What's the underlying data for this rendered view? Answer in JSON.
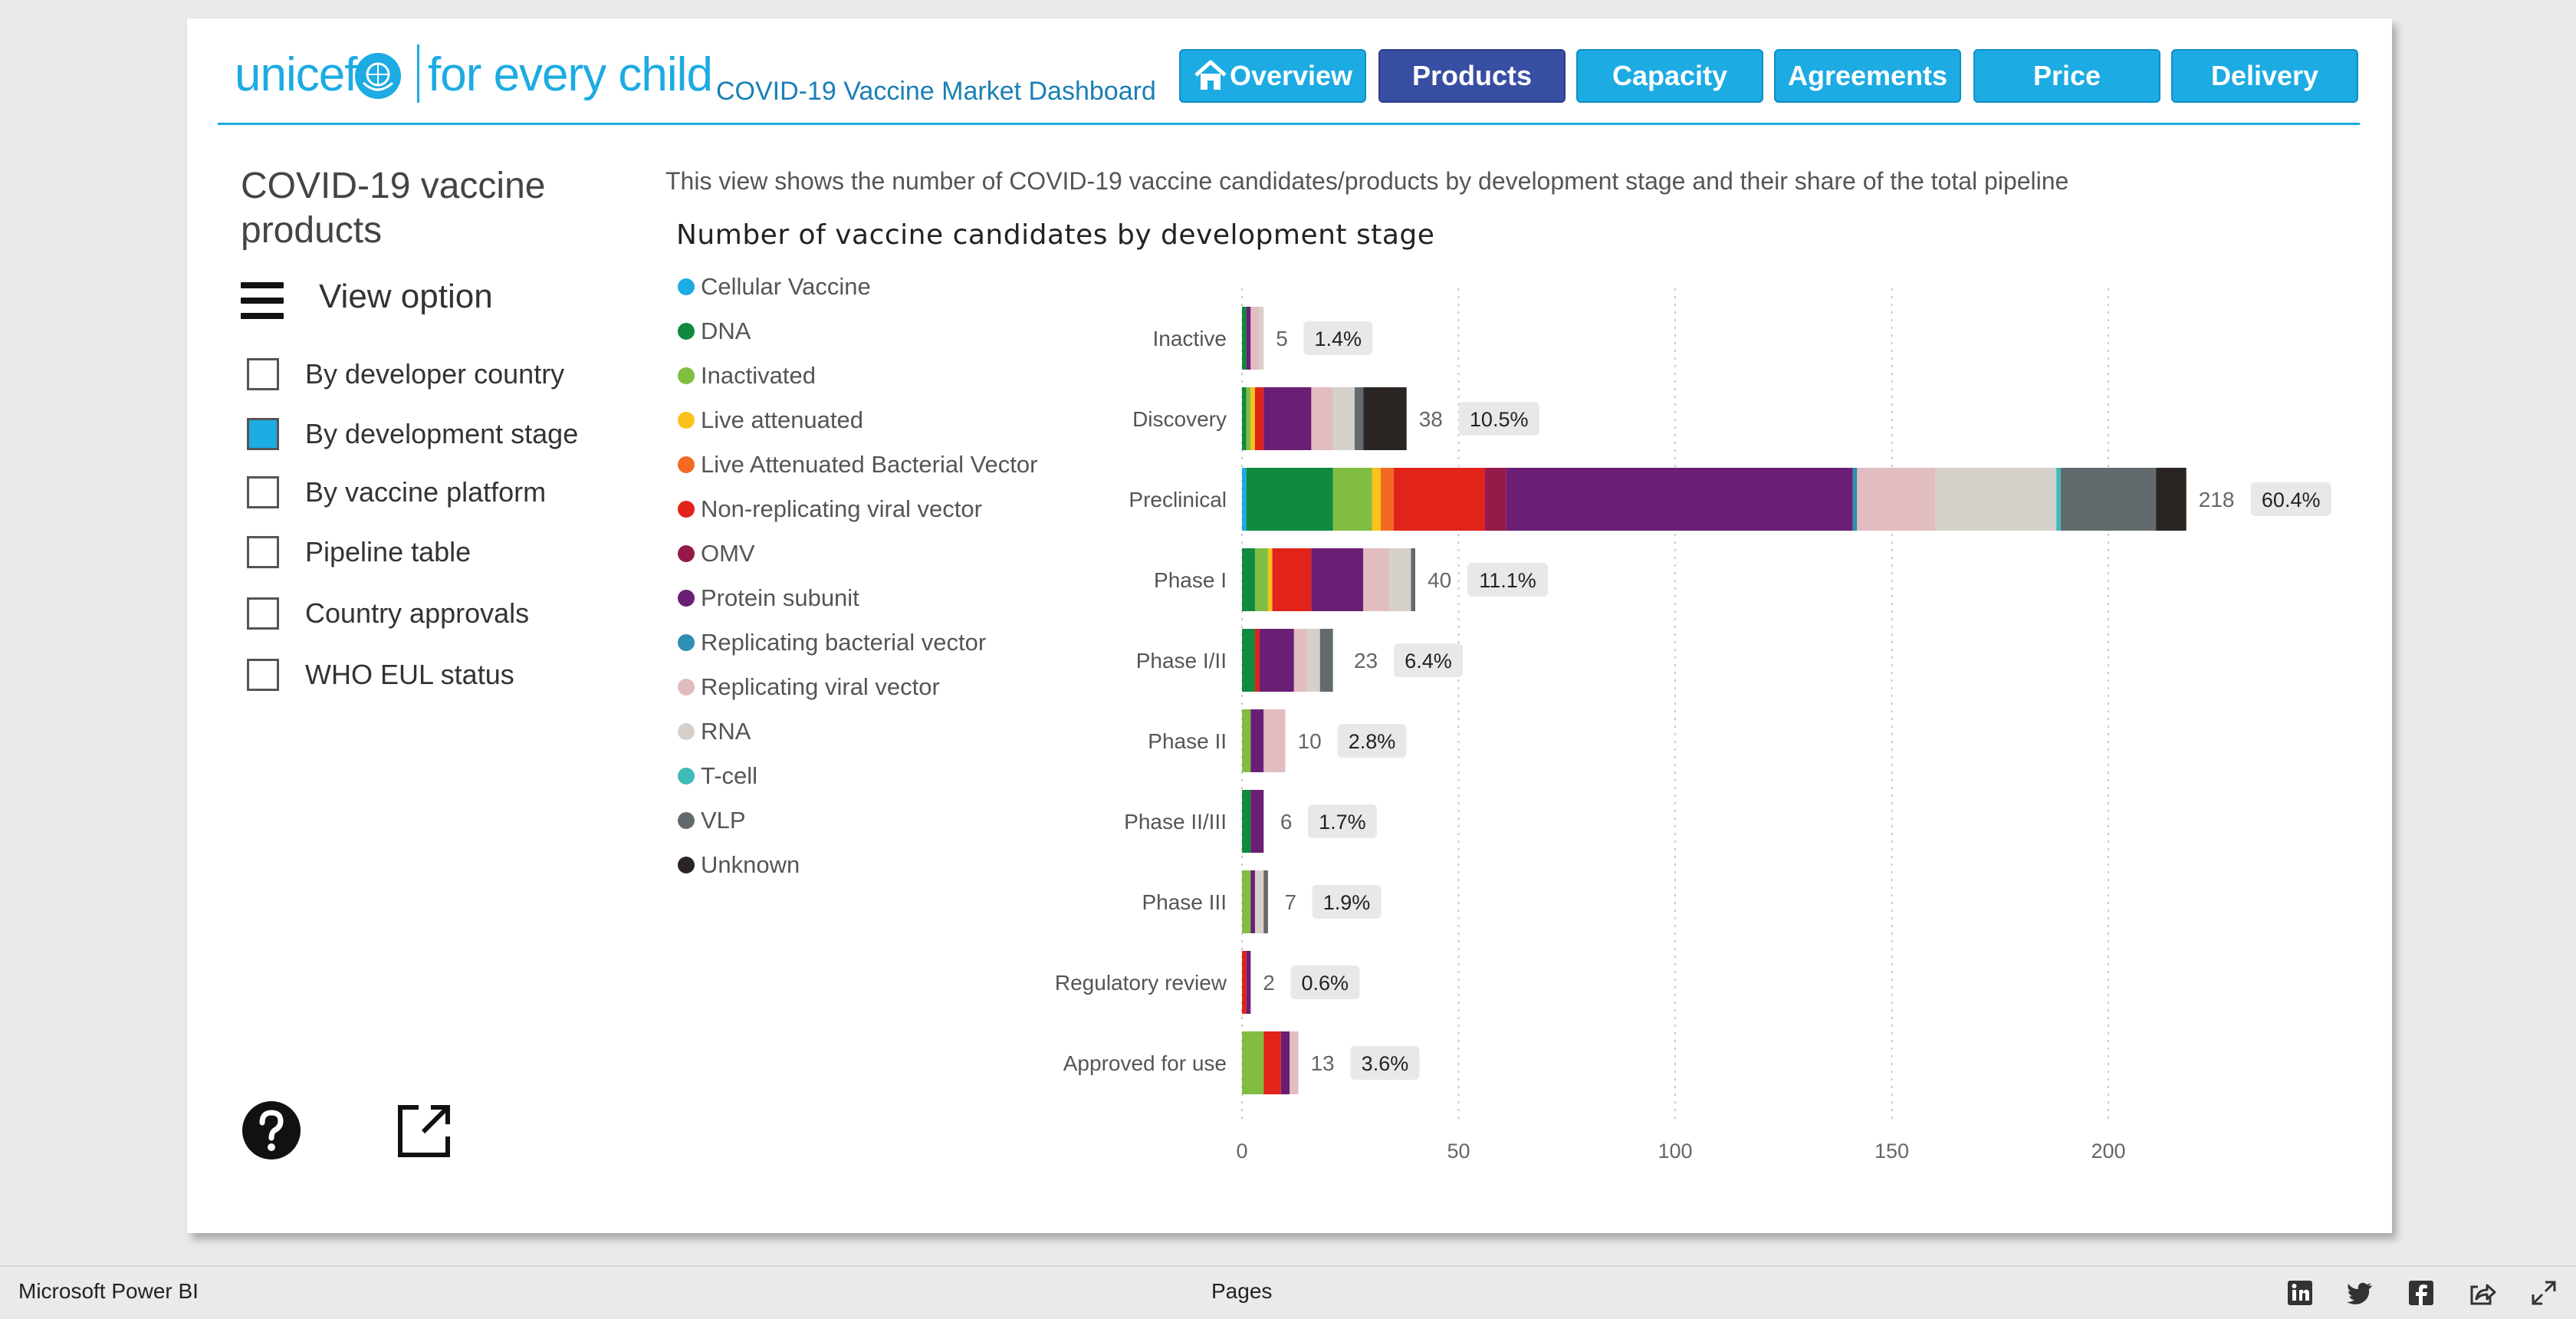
{
  "header": {
    "logo_text": "unicef",
    "logo_tagline": "for every child",
    "dashboard_title": "COVID-19 Vaccine Market Dashboard",
    "nav": [
      {
        "label": "Overview",
        "icon": "home-icon",
        "active": false
      },
      {
        "label": "Products",
        "active": true
      },
      {
        "label": "Capacity",
        "active": false
      },
      {
        "label": "Agreements",
        "active": false
      },
      {
        "label": "Price",
        "active": false
      },
      {
        "label": "Delivery",
        "active": false
      }
    ]
  },
  "left_panel": {
    "title": "COVID-19 vaccine products",
    "view_option_label": "View option",
    "options": [
      {
        "label": "By developer country",
        "checked": false
      },
      {
        "label": "By development stage",
        "checked": true
      },
      {
        "label": "By vaccine platform",
        "checked": false
      },
      {
        "label": "Pipeline table",
        "checked": false
      },
      {
        "label": "Country approvals",
        "checked": false
      },
      {
        "label": "WHO EUL status",
        "checked": false
      }
    ],
    "icons": [
      "help-icon",
      "expand-icon"
    ]
  },
  "view_description": "This view shows the number of COVID-19 vaccine candidates/products by development stage and their share of the total pipeline",
  "chart_data": {
    "type": "bar",
    "orientation": "horizontal",
    "stacked": true,
    "title": "Number of vaccine candidates by development stage",
    "categories": [
      "Inactive",
      "Discovery",
      "Preclinical",
      "Phase I",
      "Phase I/II",
      "Phase II",
      "Phase II/III",
      "Phase III",
      "Regulatory review",
      "Approved for use"
    ],
    "totals": [
      5,
      38,
      218,
      40,
      23,
      10,
      6,
      7,
      2,
      13
    ],
    "share_labels": [
      "1.4%",
      "10.5%",
      "60.4%",
      "11.1%",
      "6.4%",
      "2.8%",
      "1.7%",
      "1.9%",
      "0.6%",
      "3.6%"
    ],
    "series": [
      {
        "name": "Cellular Vaccine",
        "color": "#1cabe2",
        "values": [
          0,
          0,
          1,
          0,
          0,
          0,
          0,
          0,
          0,
          0
        ]
      },
      {
        "name": "DNA",
        "color": "#0f8a3e",
        "values": [
          1,
          1,
          20,
          3,
          3,
          0,
          2,
          0,
          0,
          0
        ]
      },
      {
        "name": "Inactivated",
        "color": "#80bd41",
        "values": [
          0,
          1,
          9,
          3,
          0,
          2,
          0,
          2,
          0,
          5
        ]
      },
      {
        "name": "Live attenuated",
        "color": "#fbc21b",
        "values": [
          0,
          1,
          2,
          1,
          0,
          0,
          0,
          0,
          0,
          0
        ]
      },
      {
        "name": "Live Attenuated Bacterial Vector",
        "color": "#f26a21",
        "values": [
          0,
          0,
          3,
          0,
          0,
          0,
          0,
          0,
          0,
          0
        ]
      },
      {
        "name": "Non-replicating viral vector",
        "color": "#e2231a",
        "values": [
          0,
          2,
          21,
          9,
          1,
          0,
          0,
          0,
          1,
          4
        ]
      },
      {
        "name": "OMV",
        "color": "#961a49",
        "values": [
          0,
          0,
          5,
          0,
          0,
          0,
          0,
          0,
          0,
          0
        ]
      },
      {
        "name": "Protein subunit",
        "color": "#6a1e74",
        "values": [
          1,
          11,
          80,
          12,
          8,
          3,
          3,
          1,
          1,
          2
        ]
      },
      {
        "name": "Replicating bacterial vector",
        "color": "#2e8fb2",
        "values": [
          0,
          0,
          1,
          0,
          0,
          0,
          0,
          0,
          0,
          0
        ]
      },
      {
        "name": "Replicating viral vector",
        "color": "#e1bcc0",
        "values": [
          2,
          5,
          18,
          6,
          3,
          5,
          0,
          0,
          0,
          2
        ]
      },
      {
        "name": "RNA",
        "color": "#d6d0ca",
        "values": [
          1,
          5,
          28,
          5,
          3,
          0,
          0,
          2,
          0,
          0
        ]
      },
      {
        "name": "T-cell",
        "color": "#3fbcb8",
        "values": [
          0,
          0,
          1,
          0,
          0,
          0,
          0,
          0,
          0,
          0
        ]
      },
      {
        "name": "VLP",
        "color": "#636a6d",
        "values": [
          0,
          2,
          22,
          1,
          3,
          0,
          0,
          1,
          0,
          0
        ]
      },
      {
        "name": "Unknown",
        "color": "#2a2523",
        "values": [
          0,
          10,
          7,
          0,
          0,
          0,
          0,
          0,
          0,
          0
        ]
      }
    ],
    "xlim": [
      0,
      240
    ],
    "xticks": [
      0,
      50,
      100,
      150,
      200
    ],
    "grid": "vertical dotted",
    "legend_position": "left"
  },
  "footer": {
    "app_name": "Microsoft Power BI",
    "pages_label": "Pages",
    "icons": [
      "linkedin-icon",
      "twitter-icon",
      "facebook-icon",
      "share-icon",
      "fullscreen-icon"
    ]
  }
}
